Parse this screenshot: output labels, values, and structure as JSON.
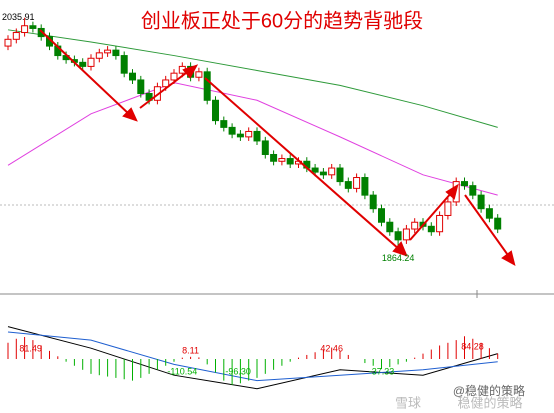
{
  "chart_data": {
    "type": "candlestick",
    "title": "创业板正处于60分的趋势背驰段",
    "ylim": [
      1835,
      2049
    ],
    "open": [
      2015,
      2020,
      2025,
      2030,
      2028,
      2022,
      2015,
      2008,
      2005,
      2003,
      2000,
      2006,
      2010,
      2012,
      2008,
      1995,
      1990,
      1980,
      1975,
      1985,
      1990,
      1995,
      2000,
      1992,
      1996,
      1975,
      1960,
      1955,
      1950,
      1948,
      1952,
      1945,
      1935,
      1930,
      1932,
      1928,
      1930,
      1925,
      1922,
      1920,
      1925,
      1915,
      1910,
      1918,
      1905,
      1895,
      1885,
      1878,
      1872,
      1880,
      1885,
      1882,
      1878,
      1890,
      1900,
      1915,
      1912,
      1905,
      1895,
      1888
    ],
    "high": [
      2023,
      2028,
      2035.91,
      2033,
      2031,
      2025,
      2018,
      2011,
      2008,
      2006,
      2009,
      2013,
      2015,
      2015,
      2011,
      1998,
      1993,
      1983,
      1988,
      1993,
      1998,
      2003,
      2003,
      1999,
      1999,
      1978,
      1963,
      1958,
      1953,
      1955,
      1955,
      1948,
      1938,
      1935,
      1935,
      1933,
      1933,
      1928,
      1925,
      1928,
      1928,
      1918,
      1921,
      1921,
      1908,
      1898,
      1888,
      1881,
      1883,
      1888,
      1888,
      1885,
      1893,
      1903,
      1918,
      1918,
      1915,
      1908,
      1898,
      1891
    ],
    "low": [
      2012,
      2017,
      2022,
      2025,
      2019,
      2012,
      2005,
      2002,
      2000,
      1997,
      1997,
      2003,
      2007,
      2005,
      1992,
      1987,
      1977,
      1972,
      1972,
      1982,
      1987,
      1992,
      1989,
      1989,
      1972,
      1957,
      1952,
      1947,
      1945,
      1945,
      1942,
      1932,
      1927,
      1927,
      1925,
      1925,
      1922,
      1919,
      1917,
      1917,
      1912,
      1907,
      1907,
      1902,
      1892,
      1882,
      1875,
      1864.24,
      1869,
      1877,
      1879,
      1875,
      1875,
      1887,
      1897,
      1909,
      1902,
      1892,
      1885,
      1877
    ],
    "close": [
      2020,
      2025,
      2030,
      2028,
      2022,
      2015,
      2008,
      2005,
      2003,
      2000,
      2006,
      2010,
      2012,
      2008,
      1995,
      1990,
      1980,
      1975,
      1985,
      1990,
      1995,
      2000,
      1992,
      1996,
      1975,
      1960,
      1955,
      1950,
      1948,
      1952,
      1945,
      1935,
      1930,
      1932,
      1928,
      1930,
      1925,
      1922,
      1920,
      1925,
      1915,
      1910,
      1918,
      1905,
      1895,
      1885,
      1878,
      1872,
      1880,
      1885,
      1882,
      1878,
      1890,
      1900,
      1915,
      1912,
      1905,
      1895,
      1888,
      1880
    ],
    "up_color": "#e00000",
    "down_color": "#008000",
    "high_label": 2035.91,
    "low_label": 1864.24,
    "ma_lines": [
      {
        "color": "#2e9a3a",
        "x": [
          0,
          10,
          20,
          30,
          40,
          50,
          59
        ],
        "values": [
          2027,
          2018,
          2008,
          1997,
          1986,
          1971,
          1955
        ]
      },
      {
        "color": "#e040e0",
        "x": [
          0,
          10,
          20,
          30,
          40,
          50,
          59
        ],
        "values": [
          1927,
          1965,
          1988,
          1975,
          1948,
          1920,
          1905
        ]
      }
    ],
    "macd": {
      "ylim": [
        -200,
        200
      ],
      "hist": [
        60,
        75,
        81.49,
        70,
        50,
        30,
        10,
        -10,
        -25,
        -40,
        -55,
        -60,
        -65,
        -70,
        -75,
        -80,
        -70,
        -55,
        -40,
        -25,
        -10,
        5,
        8.11,
        6,
        -20,
        -50,
        -80,
        -96.3,
        -90,
        -80,
        -70,
        -55,
        -40,
        -25,
        -10,
        5,
        15,
        25,
        35,
        42.46,
        30,
        15,
        0,
        -15,
        -25,
        -37.33,
        -30,
        -20,
        -10,
        5,
        20,
        35,
        50,
        60,
        70,
        84.28,
        75,
        60,
        40,
        20
      ],
      "lines": [
        {
          "color": "#000000",
          "x": [
            0,
            10,
            20,
            30,
            40,
            50,
            59
          ],
          "values": [
            120,
            40,
            -60,
            -110,
            -40,
            -60,
            20
          ]
        },
        {
          "color": "#1f5fd0",
          "x": [
            0,
            10,
            20,
            30,
            40,
            50,
            59
          ],
          "values": [
            100,
            70,
            -20,
            -80,
            -60,
            -40,
            -10
          ]
        }
      ],
      "annotations": [
        {
          "text": "81.49",
          "color": "#e00000"
        },
        {
          "text": "-110.54",
          "color": "#00b000"
        },
        {
          "text": "8.11",
          "color": "#e00000"
        },
        {
          "text": "-96.30",
          "color": "#00b000"
        },
        {
          "text": "42.46",
          "color": "#e00000"
        },
        {
          "text": "-37.33",
          "color": "#00b000"
        },
        {
          "text": "84.28",
          "color": "#e00000"
        }
      ]
    }
  },
  "watermark": {
    "site": "雪球",
    "author": "稳健的策略",
    "handle": "@稳健的策略"
  }
}
